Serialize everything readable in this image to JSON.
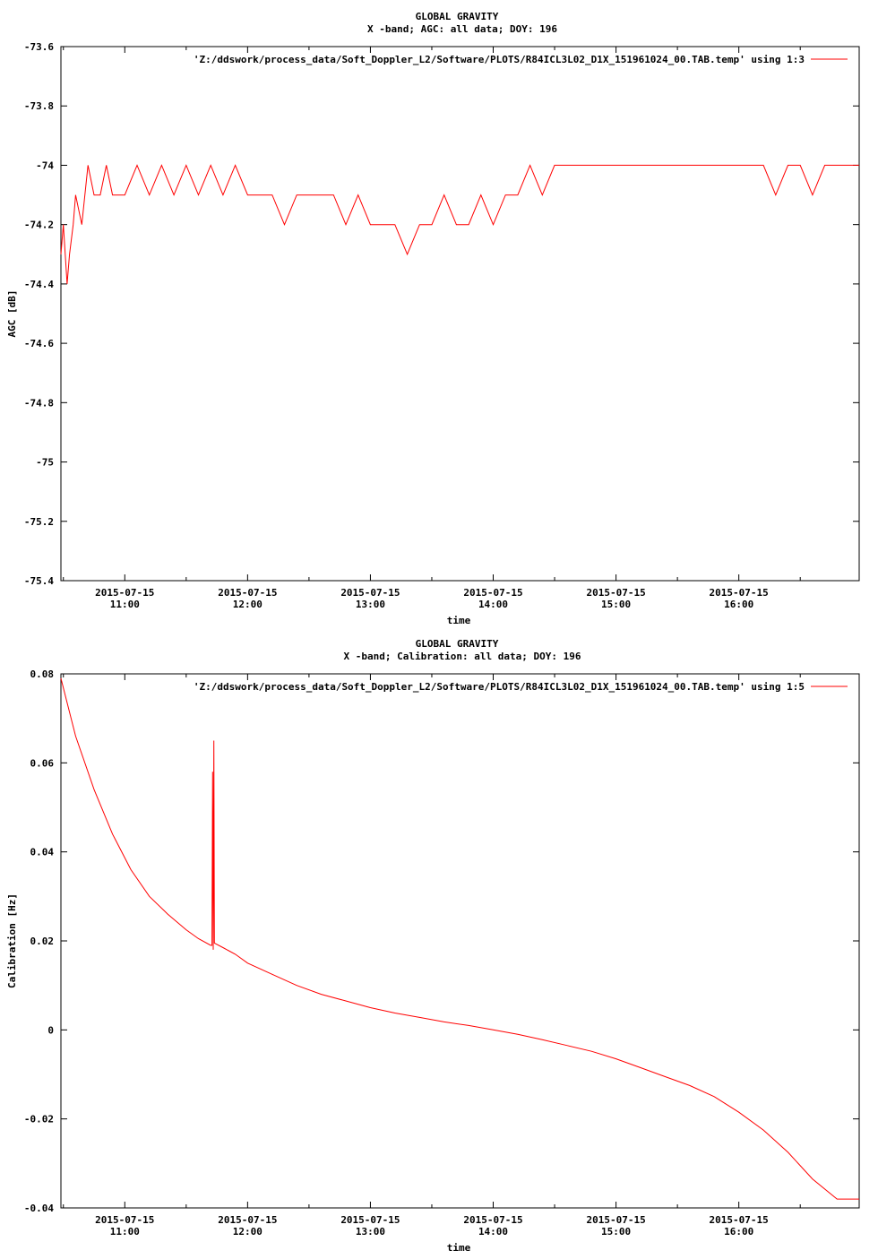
{
  "colors": {
    "series": "#ff0000",
    "axis": "#000000",
    "background": "#ffffff"
  },
  "chart_data": [
    {
      "type": "line",
      "title": "GLOBAL GRAVITY",
      "subtitle": "X -band; AGC: all data; DOY: 196",
      "xlabel": "time",
      "ylabel": "AGC [dB]",
      "ylim": [
        -75.4,
        -73.6
      ],
      "yticks": [
        -73.6,
        -73.8,
        -74,
        -74.2,
        -74.4,
        -74.6,
        -74.8,
        -75,
        -75.2,
        -75.4
      ],
      "ytick_labels": [
        "-73.6",
        "-73.8",
        "-74",
        "-74.2",
        "-74.4",
        "-74.6",
        "-74.8",
        "-75",
        "-75.2",
        "-75.4"
      ],
      "xlim": [
        10.48,
        16.98
      ],
      "xticks": [
        11,
        12,
        13,
        14,
        15,
        16
      ],
      "xtick_labels": [
        [
          "2015-07-15",
          "11:00"
        ],
        [
          "2015-07-15",
          "12:00"
        ],
        [
          "2015-07-15",
          "13:00"
        ],
        [
          "2015-07-15",
          "14:00"
        ],
        [
          "2015-07-15",
          "15:00"
        ],
        [
          "2015-07-15",
          "16:00"
        ]
      ],
      "legend": {
        "placement": "top-right",
        "label": "'Z:/ddswork/process_data/Soft_Doppler_L2/Software/PLOTS/R84ICL3L02_D1X_151961024_00.TAB.temp' using 1:3"
      },
      "grid": false,
      "series": [
        {
          "x": [
            10.48,
            10.5,
            10.53,
            10.55,
            10.58,
            10.6,
            10.65,
            10.7,
            10.75,
            10.8,
            10.85,
            10.9,
            11.0,
            11.1,
            11.2,
            11.3,
            11.4,
            11.5,
            11.6,
            11.7,
            11.8,
            11.9,
            12.0,
            12.1,
            12.2,
            12.3,
            12.4,
            12.5,
            12.6,
            12.7,
            12.8,
            12.9,
            13.0,
            13.1,
            13.2,
            13.3,
            13.4,
            13.5,
            13.6,
            13.7,
            13.8,
            13.9,
            14.0,
            14.1,
            14.2,
            14.3,
            14.4,
            14.5,
            14.6,
            14.7,
            14.8,
            14.9,
            15.0,
            15.1,
            15.2,
            15.3,
            15.4,
            15.5,
            15.6,
            15.7,
            15.8,
            15.9,
            16.0,
            16.1,
            16.2,
            16.3,
            16.4,
            16.5,
            16.6,
            16.7,
            16.8,
            16.9,
            16.98
          ],
          "y": [
            -74.3,
            -74.2,
            -74.4,
            -74.3,
            -74.2,
            -74.1,
            -74.2,
            -74.0,
            -74.1,
            -74.1,
            -74.0,
            -74.1,
            -74.1,
            -74.0,
            -74.1,
            -74.0,
            -74.1,
            -74.0,
            -74.1,
            -74.0,
            -74.1,
            -74.0,
            -74.1,
            -74.1,
            -74.1,
            -74.2,
            -74.1,
            -74.1,
            -74.1,
            -74.1,
            -74.2,
            -74.1,
            -74.2,
            -74.2,
            -74.2,
            -74.3,
            -74.2,
            -74.2,
            -74.1,
            -74.2,
            -74.2,
            -74.1,
            -74.2,
            -74.1,
            -74.1,
            -74.0,
            -74.1,
            -74.0,
            -74.0,
            -74.0,
            -74.0,
            -74.0,
            -74.0,
            -74.0,
            -74.0,
            -74.0,
            -74.0,
            -74.0,
            -74.0,
            -74.0,
            -74.0,
            -74.0,
            -74.0,
            -74.0,
            -74.0,
            -74.1,
            -74.0,
            -74.0,
            -74.1,
            -74.0,
            -74.0,
            -74.0,
            -74.0
          ]
        }
      ]
    },
    {
      "type": "line",
      "title": "GLOBAL GRAVITY",
      "subtitle": "X -band; Calibration: all data; DOY: 196",
      "xlabel": "time",
      "ylabel": "Calibration [Hz]",
      "ylim": [
        -0.04,
        0.08
      ],
      "yticks": [
        0.08,
        0.06,
        0.04,
        0.02,
        0,
        -0.02,
        -0.04
      ],
      "ytick_labels": [
        "0.08",
        "0.06",
        "0.04",
        "0.02",
        "0",
        "-0.02",
        "-0.04"
      ],
      "xlim": [
        10.48,
        16.98
      ],
      "xticks": [
        11,
        12,
        13,
        14,
        15,
        16
      ],
      "xtick_labels": [
        [
          "2015-07-15",
          "11:00"
        ],
        [
          "2015-07-15",
          "12:00"
        ],
        [
          "2015-07-15",
          "13:00"
        ],
        [
          "2015-07-15",
          "14:00"
        ],
        [
          "2015-07-15",
          "15:00"
        ],
        [
          "2015-07-15",
          "16:00"
        ]
      ],
      "legend": {
        "placement": "top-right",
        "label": "'Z:/ddswork/process_data/Soft_Doppler_L2/Software/PLOTS/R84ICL3L02_D1X_151961024_00.TAB.temp' using 1:5"
      },
      "grid": false,
      "series": [
        {
          "x": [
            10.48,
            10.6,
            10.75,
            10.9,
            11.05,
            11.2,
            11.35,
            11.5,
            11.6,
            11.7,
            11.71,
            11.715,
            11.72,
            11.725,
            11.73,
            11.8,
            11.9,
            12.0,
            12.2,
            12.4,
            12.6,
            12.8,
            13.0,
            13.2,
            13.4,
            13.6,
            13.8,
            14.0,
            14.2,
            14.4,
            14.6,
            14.8,
            15.0,
            15.2,
            15.4,
            15.6,
            15.8,
            16.0,
            16.2,
            16.4,
            16.6,
            16.8,
            16.98
          ],
          "y": [
            0.079,
            0.066,
            0.054,
            0.044,
            0.036,
            0.03,
            0.026,
            0.0225,
            0.0205,
            0.019,
            0.019,
            0.058,
            0.018,
            0.065,
            0.0195,
            0.0185,
            0.017,
            0.015,
            0.0125,
            0.01,
            0.008,
            0.0065,
            0.005,
            0.0038,
            0.0028,
            0.0018,
            0.001,
            0.0,
            -0.001,
            -0.0022,
            -0.0035,
            -0.0048,
            -0.0065,
            -0.0085,
            -0.0105,
            -0.0125,
            -0.015,
            -0.0185,
            -0.0225,
            -0.0275,
            -0.0335,
            -0.038,
            -0.038
          ]
        }
      ]
    }
  ]
}
